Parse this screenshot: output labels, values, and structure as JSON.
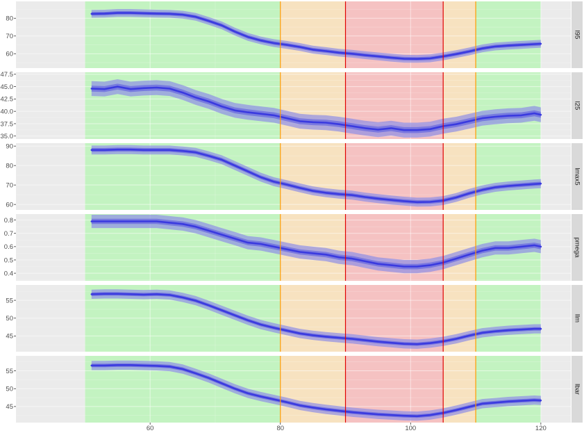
{
  "chart_data": {
    "type": "line",
    "layout": "faceted-vertical",
    "x_axis": {
      "range": [
        39.4,
        124.6
      ],
      "ticks": [
        60,
        80,
        100,
        120
      ],
      "tick_labels": [
        "60",
        "80",
        "100",
        "120"
      ]
    },
    "zones": [
      {
        "from": 50,
        "to": 80,
        "fill": "#c3f3c1"
      },
      {
        "from": 80,
        "to": 90,
        "fill": "#f7e2c0"
      },
      {
        "from": 90,
        "to": 105,
        "fill": "#f5c2c2"
      },
      {
        "from": 105,
        "to": 110,
        "fill": "#f7e2c0"
      },
      {
        "from": 110,
        "to": 120,
        "fill": "#c3f3c1"
      }
    ],
    "vlines": [
      {
        "x": 80,
        "color": "#ff9a00"
      },
      {
        "x": 90,
        "color": "#e00000"
      },
      {
        "x": 105,
        "color": "#e00000"
      },
      {
        "x": 110,
        "color": "#ff9a00"
      }
    ],
    "colors": {
      "panel_bg": "#ebebeb",
      "grid": "#ffffff",
      "strip_bg": "#d9d9d9",
      "line": "#3a3adf",
      "band_inner": "#6a6ae0",
      "band_outer": "#8f8fe6"
    },
    "x": [
      51,
      53,
      55,
      57,
      59,
      61,
      63,
      65,
      67,
      69,
      71,
      73,
      75,
      77,
      79,
      81,
      83,
      85,
      87,
      89,
      91,
      93,
      95,
      97,
      99,
      101,
      103,
      105,
      107,
      109,
      111,
      113,
      115,
      117,
      119,
      120
    ],
    "panels": [
      {
        "name": "l95",
        "ylim": [
          51.9,
          89.5
        ],
        "yticks": [
          60,
          70,
          80
        ],
        "ytick_labels": [
          "60",
          "70",
          "80"
        ],
        "values": [
          82.5,
          82.6,
          83.0,
          83.0,
          82.8,
          82.6,
          82.5,
          82.0,
          80.8,
          78.5,
          76.0,
          72.5,
          69.5,
          67.5,
          66.0,
          65.0,
          63.8,
          62.3,
          61.5,
          60.6,
          60.0,
          59.2,
          58.5,
          57.8,
          57.2,
          57.1,
          57.4,
          58.5,
          59.8,
          61.3,
          63.0,
          64.1,
          64.6,
          65.0,
          65.4,
          65.6
        ],
        "inner_half_width": 1.0,
        "outer_half_width": 2.2
      },
      {
        "name": "l25",
        "ylim": [
          34.4,
          47.9
        ],
        "yticks": [
          35.0,
          37.5,
          40.0,
          42.5,
          45.0,
          47.5
        ],
        "ytick_labels": [
          "35.0",
          "37.5",
          "40.0",
          "42.5",
          "45.0",
          "47.5"
        ],
        "values": [
          44.6,
          44.5,
          45.0,
          44.5,
          44.7,
          44.8,
          44.6,
          43.8,
          42.8,
          42.0,
          41.0,
          40.2,
          39.8,
          39.5,
          39.2,
          38.6,
          38.0,
          37.8,
          37.7,
          37.4,
          37.0,
          36.6,
          36.3,
          36.6,
          36.2,
          36.2,
          36.4,
          37.0,
          37.4,
          38.0,
          38.6,
          38.9,
          39.1,
          39.2,
          39.6,
          39.3
        ],
        "inner_half_width": 0.6,
        "outer_half_width": 1.5
      },
      {
        "name": "lmax5",
        "ylim": [
          57.2,
          91.5
        ],
        "yticks": [
          60,
          70,
          80,
          90
        ],
        "ytick_labels": [
          "60",
          "70",
          "80",
          "90"
        ],
        "values": [
          88.0,
          88.0,
          88.2,
          88.2,
          88.0,
          88.0,
          88.0,
          87.5,
          86.8,
          85.0,
          83.0,
          80.0,
          77.0,
          74.0,
          71.7,
          70.2,
          68.5,
          67.0,
          66.0,
          65.3,
          64.8,
          63.8,
          63.0,
          62.3,
          61.7,
          61.2,
          61.3,
          62.0,
          63.6,
          65.7,
          67.5,
          68.8,
          69.5,
          70.0,
          70.5,
          70.7
        ],
        "inner_half_width": 1.0,
        "outer_half_width": 2.3
      },
      {
        "name": "pmega",
        "ylim": [
          0.343,
          0.845
        ],
        "yticks": [
          0.4,
          0.5,
          0.6,
          0.7,
          0.8
        ],
        "ytick_labels": [
          "0.4",
          "0.5",
          "0.6",
          "0.7",
          "0.8"
        ],
        "values": [
          0.79,
          0.79,
          0.79,
          0.79,
          0.79,
          0.79,
          0.78,
          0.77,
          0.75,
          0.72,
          0.69,
          0.66,
          0.63,
          0.62,
          0.6,
          0.58,
          0.56,
          0.55,
          0.54,
          0.52,
          0.51,
          0.49,
          0.47,
          0.46,
          0.45,
          0.45,
          0.46,
          0.48,
          0.51,
          0.54,
          0.57,
          0.59,
          0.59,
          0.6,
          0.61,
          0.6
        ],
        "inner_half_width": 0.02,
        "outer_half_width": 0.05
      },
      {
        "name": "llm",
        "ylim": [
          40.6,
          59.3
        ],
        "yticks": [
          45,
          50,
          55
        ],
        "ytick_labels": [
          "45",
          "50",
          "55"
        ],
        "values": [
          56.7,
          56.8,
          56.8,
          56.7,
          56.6,
          56.7,
          56.5,
          55.8,
          54.9,
          53.6,
          52.2,
          50.8,
          49.4,
          48.2,
          47.3,
          46.5,
          45.7,
          45.2,
          44.8,
          44.5,
          44.2,
          43.8,
          43.4,
          43.1,
          42.8,
          42.7,
          43.0,
          43.5,
          44.2,
          45.1,
          45.9,
          46.3,
          46.6,
          46.8,
          47.0,
          47.0
        ],
        "inner_half_width": 0.5,
        "outer_half_width": 1.3
      },
      {
        "name": "lbar",
        "ylim": [
          40.5,
          59.2
        ],
        "yticks": [
          45,
          50,
          55
        ],
        "ytick_labels": [
          "45",
          "50",
          "55"
        ],
        "values": [
          56.5,
          56.5,
          56.6,
          56.6,
          56.5,
          56.4,
          56.2,
          55.5,
          54.3,
          53.0,
          51.5,
          50.0,
          48.7,
          47.8,
          47.0,
          46.2,
          45.3,
          44.7,
          44.2,
          43.8,
          43.4,
          43.1,
          42.8,
          42.6,
          42.4,
          42.3,
          42.6,
          43.2,
          44.0,
          44.9,
          45.8,
          46.1,
          46.4,
          46.6,
          46.8,
          46.7
        ],
        "inner_half_width": 0.5,
        "outer_half_width": 1.3
      }
    ]
  }
}
